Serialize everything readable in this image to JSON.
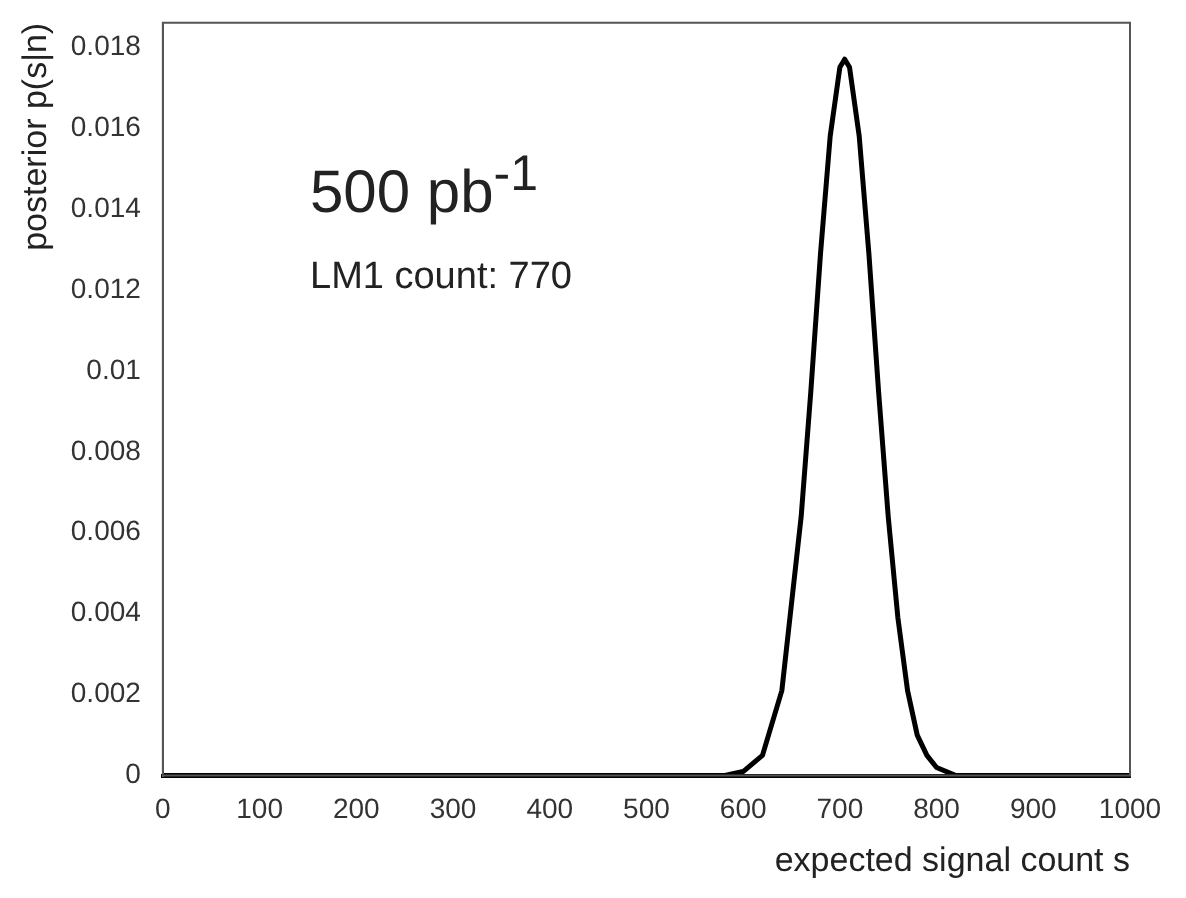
{
  "chart_data": {
    "type": "line",
    "xlabel": "expected signal count s",
    "ylabel": "posterior p(s|n)",
    "annotations": [
      "500 pb$^{-1}$",
      "LM1 count: 770"
    ],
    "x": [
      0,
      500,
      560,
      580,
      600,
      620,
      640,
      660,
      670,
      680,
      690,
      700,
      705,
      710,
      720,
      730,
      740,
      750,
      760,
      770,
      780,
      790,
      800,
      820,
      850,
      900,
      1000
    ],
    "series": [
      {
        "color": "#000000",
        "values": [
          0,
          0,
          0,
          0,
          0.0001,
          0.0005,
          0.0021,
          0.0064,
          0.0095,
          0.0129,
          0.0158,
          0.0175,
          0.0177,
          0.0175,
          0.0158,
          0.0129,
          0.0095,
          0.0064,
          0.0039,
          0.0021,
          0.001,
          0.0005,
          0.0002,
          0,
          0,
          0,
          0
        ]
      }
    ],
    "xlim": [
      0,
      1000
    ],
    "xticks": [
      0,
      100,
      200,
      300,
      400,
      500,
      600,
      700,
      800,
      900,
      1000
    ],
    "ylim": [
      0,
      0.0186
    ],
    "yticks": [
      0,
      0.002,
      0.004,
      0.006,
      0.008,
      0.01,
      0.012,
      0.014,
      0.016,
      0.018
    ],
    "grid": false,
    "legend": false,
    "marker": "none",
    "line_style": "solid"
  }
}
